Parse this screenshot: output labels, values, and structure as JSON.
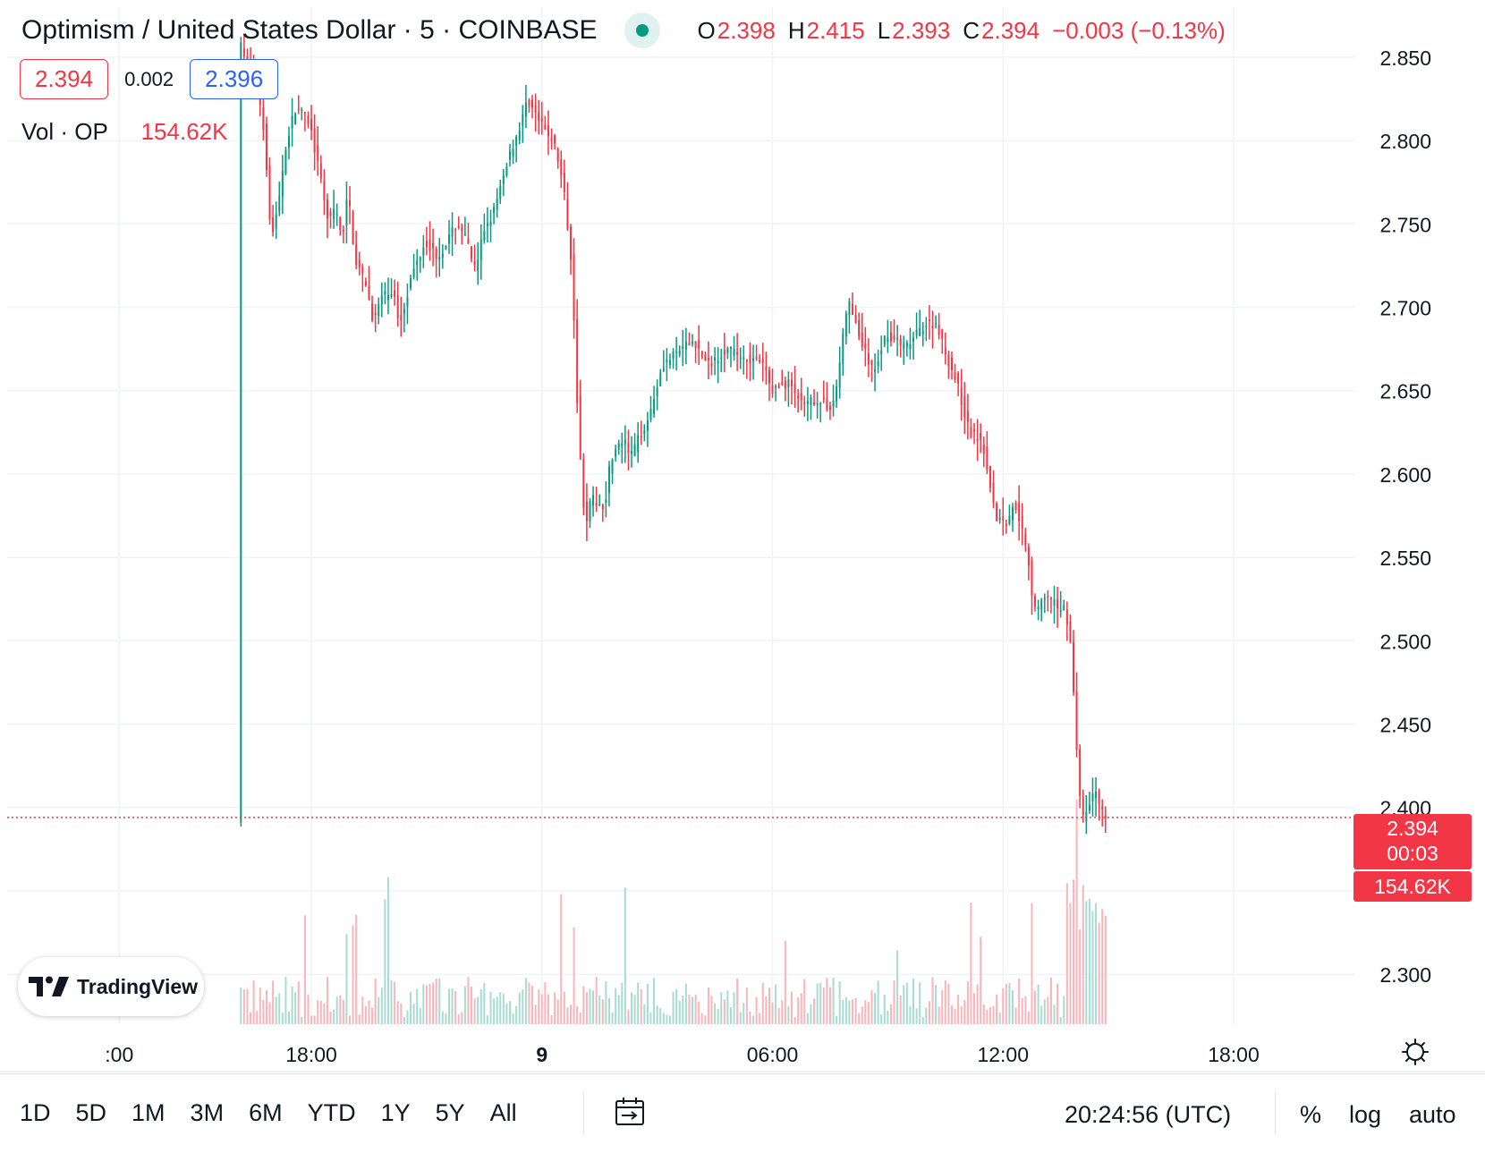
{
  "legend": {
    "title": "Optimism / United States Dollar · 5 · COINBASE",
    "ohlc": [
      {
        "k": "O",
        "v": "2.398"
      },
      {
        "k": "H",
        "v": "2.415"
      },
      {
        "k": "L",
        "v": "2.393"
      },
      {
        "k": "C",
        "v": "2.394"
      }
    ],
    "change": "−0.003 (−0.13%)",
    "sell_price": "2.394",
    "spread": "0.002",
    "buy_price": "2.396",
    "volume_label": "Vol · OP",
    "volume_value": "154.62K"
  },
  "price_tag": {
    "price": "2.394",
    "countdown": "00:03",
    "volume": "154.62K"
  },
  "logo_text": "TradingView",
  "toolbar": {
    "ranges": [
      "1D",
      "5D",
      "1M",
      "3M",
      "6M",
      "YTD",
      "1Y",
      "5Y",
      "All"
    ],
    "clock": "20:24:56 (UTC)",
    "percent": "%",
    "log": "log",
    "auto": "auto"
  },
  "colors": {
    "up": "#089981",
    "down": "#f23645",
    "up_volume": "#a8dcd2",
    "down_volume": "#f9b5ba",
    "grid": "#f0f3fa",
    "text": "#131722",
    "accent_blue": "#2962ff"
  },
  "chart_data": {
    "type": "candlestick",
    "title": "Optimism / United States Dollar · 5 · COINBASE",
    "interval": "5",
    "exchange": "COINBASE",
    "ylim": [
      2.27,
      2.88
    ],
    "y_ticks": [
      "2.300",
      "2.350",
      "2.400",
      "2.450",
      "2.500",
      "2.550",
      "2.600",
      "2.650",
      "2.700",
      "2.750",
      "2.800",
      "2.850"
    ],
    "x_ticks": [
      {
        "t": 60,
        "label": ":00"
      },
      {
        "t": 120,
        "label": "18:00"
      },
      {
        "t": 192,
        "label": "9"
      },
      {
        "t": 264,
        "label": "06:00"
      },
      {
        "t": 336,
        "label": "12:00"
      },
      {
        "t": 408,
        "label": "18:00"
      }
    ],
    "last_price": 2.394,
    "last_volume": "154.62K",
    "anchors": [
      [
        98,
        2.86
      ],
      [
        100,
        2.845
      ],
      [
        102,
        2.84
      ],
      [
        104,
        2.83
      ],
      [
        106,
        2.8
      ],
      [
        108,
        2.74
      ],
      [
        110,
        2.76
      ],
      [
        112,
        2.79
      ],
      [
        114,
        2.81
      ],
      [
        116,
        2.82
      ],
      [
        120,
        2.81
      ],
      [
        122,
        2.79
      ],
      [
        126,
        2.75
      ],
      [
        128,
        2.76
      ],
      [
        130,
        2.74
      ],
      [
        132,
        2.77
      ],
      [
        134,
        2.73
      ],
      [
        138,
        2.71
      ],
      [
        140,
        2.69
      ],
      [
        142,
        2.705
      ],
      [
        146,
        2.71
      ],
      [
        148,
        2.69
      ],
      [
        152,
        2.72
      ],
      [
        156,
        2.74
      ],
      [
        160,
        2.73
      ],
      [
        166,
        2.75
      ],
      [
        168,
        2.745
      ],
      [
        172,
        2.72
      ],
      [
        174,
        2.745
      ],
      [
        178,
        2.76
      ],
      [
        182,
        2.79
      ],
      [
        186,
        2.81
      ],
      [
        188,
        2.825
      ],
      [
        192,
        2.81
      ],
      [
        196,
        2.8
      ],
      [
        198,
        2.785
      ],
      [
        200,
        2.76
      ],
      [
        202,
        2.72
      ],
      [
        204,
        2.62
      ],
      [
        206,
        2.57
      ],
      [
        208,
        2.585
      ],
      [
        212,
        2.58
      ],
      [
        214,
        2.61
      ],
      [
        218,
        2.62
      ],
      [
        220,
        2.61
      ],
      [
        226,
        2.635
      ],
      [
        230,
        2.665
      ],
      [
        236,
        2.675
      ],
      [
        240,
        2.68
      ],
      [
        244,
        2.665
      ],
      [
        250,
        2.675
      ],
      [
        256,
        2.67
      ],
      [
        262,
        2.665
      ],
      [
        264,
        2.65
      ],
      [
        270,
        2.655
      ],
      [
        274,
        2.64
      ],
      [
        278,
        2.645
      ],
      [
        282,
        2.64
      ],
      [
        284,
        2.645
      ],
      [
        286,
        2.675
      ],
      [
        288,
        2.705
      ],
      [
        292,
        2.68
      ],
      [
        296,
        2.66
      ],
      [
        300,
        2.685
      ],
      [
        306,
        2.675
      ],
      [
        312,
        2.69
      ],
      [
        316,
        2.69
      ],
      [
        318,
        2.675
      ],
      [
        322,
        2.655
      ],
      [
        326,
        2.625
      ],
      [
        330,
        2.62
      ],
      [
        332,
        2.6
      ],
      [
        334,
        2.575
      ],
      [
        338,
        2.57
      ],
      [
        340,
        2.585
      ],
      [
        344,
        2.555
      ],
      [
        346,
        2.52
      ],
      [
        350,
        2.525
      ],
      [
        354,
        2.52
      ],
      [
        356,
        2.52
      ],
      [
        358,
        2.49
      ],
      [
        359,
        2.45
      ],
      [
        361,
        2.39
      ],
      [
        363,
        2.4
      ],
      [
        365,
        2.41
      ],
      [
        367,
        2.4
      ],
      [
        368,
        2.394
      ]
    ]
  }
}
